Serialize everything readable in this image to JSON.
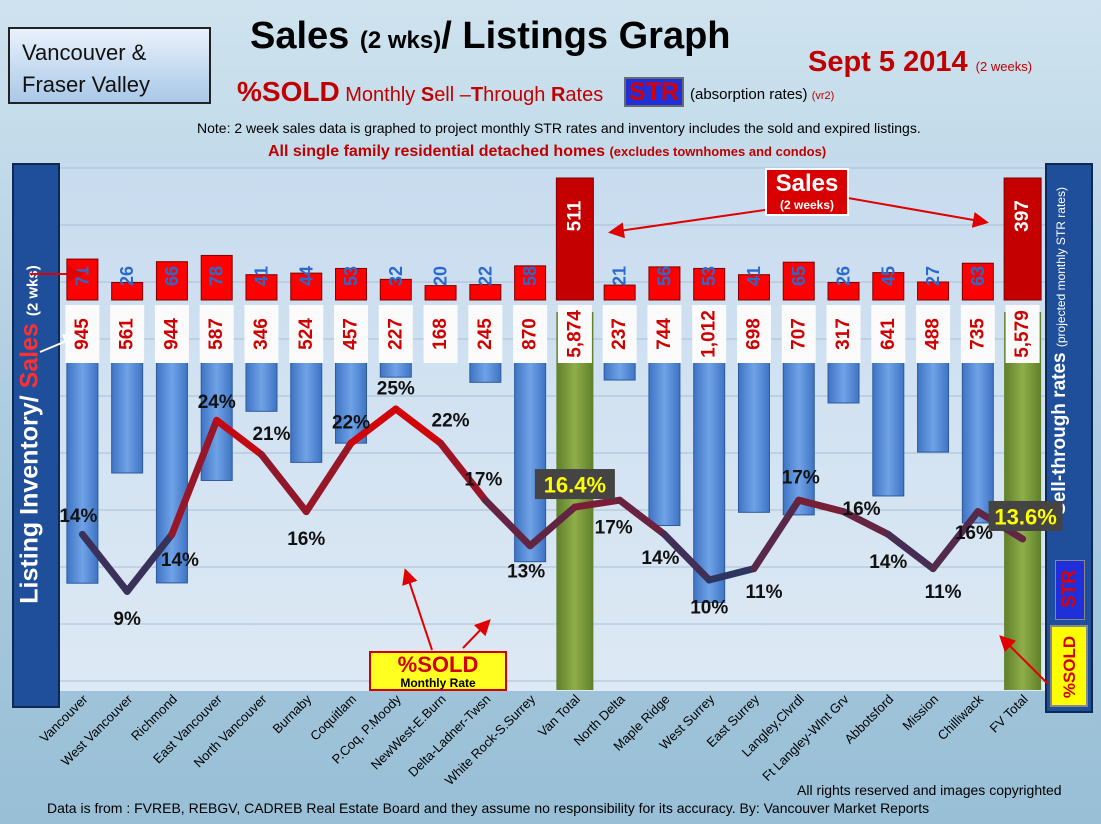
{
  "region": {
    "line1": "Vancouver &",
    "line2": "Fraser Valley"
  },
  "title": {
    "main": "Sales",
    "paren": "(2 wks)",
    "rest": "/ Listings Graph"
  },
  "date": {
    "main": "Sept 5 2014",
    "note": "(2 weeks)"
  },
  "subtitle": {
    "pct": "%SOLD",
    "parts": [
      "Monthly ",
      "S",
      "ell –",
      "T",
      "hrough ",
      "R",
      "ates"
    ],
    "str": "STR",
    "absorb": "(absorption rates)",
    "vr": "(vr2)"
  },
  "note": "Note: 2 week sales data is graphed to project monthly STR rates and inventory includes the sold and expired listings.",
  "scope": {
    "main": "All single family residential detached homes",
    "paren": "(excludes townhomes and condos)"
  },
  "left_axis": {
    "part1": "Listing Inventory/",
    "part2": "Sales",
    "part3": "(2 wks)"
  },
  "right_axis": {
    "main": "Sell-through rates",
    "note": "(projected monthly STR rates)"
  },
  "str_badge": "STR",
  "sold_badge": "%SOLD",
  "sold_box": {
    "title": "%SOLD",
    "sub": "Monthly Rate"
  },
  "sales_callout": {
    "title": "Sales",
    "sub": "(2 weeks)"
  },
  "rights": "All rights reserved and  images copyrighted",
  "source": "Data is from : FVREB, REBGV, CADREB Real Estate Board and they assume no responsibility for its accuracy. By: Vancouver Market Reports",
  "colors": {
    "sales": "#ff0000",
    "inventory": "#5b8fd8",
    "total": "#7a9a3a",
    "total_sales": "#c00000",
    "line_high": "#e00000",
    "line_low": "#1a3a6a"
  },
  "chart_data": {
    "type": "bar",
    "categories": [
      "Vancouver",
      "West Vancouver",
      "Richmond",
      "East Vancouver",
      "North Vancouver",
      "Burnaby",
      "Coquitlam",
      "P.Coq, P.Moody",
      "NewWest-E.Burn",
      "Delta-Ladner-Twsn",
      "White Rock-S.Surrey",
      "Van Total",
      "North Delta",
      "Maple Ridge",
      "West Surrey",
      "East Surrey",
      "Langley,Clvrdl",
      "Ft Langley-Wlnt Grv",
      "Abbotsford",
      "Mission",
      "Chilliwack",
      "FV Total"
    ],
    "sales": [
      71,
      26,
      66,
      78,
      41,
      44,
      53,
      32,
      20,
      22,
      58,
      511,
      21,
      56,
      53,
      41,
      65,
      26,
      45,
      27,
      63,
      397
    ],
    "sales_labels": [
      "71",
      "26",
      "66",
      "78",
      "41",
      "44",
      "53",
      "32",
      "20",
      "22",
      "58",
      "511",
      "21",
      "56",
      "53",
      "41",
      "65",
      "26",
      "45",
      "27",
      "63",
      "397"
    ],
    "inventory": [
      945,
      561,
      944,
      587,
      346,
      524,
      457,
      227,
      168,
      245,
      870,
      5874,
      237,
      744,
      1012,
      698,
      707,
      317,
      641,
      488,
      735,
      5579
    ],
    "inventory_labels": [
      "945",
      "561",
      "944",
      "587",
      "346",
      "524",
      "457",
      "227",
      "168",
      "245",
      "870",
      "5,874",
      "237",
      "744",
      "1,012",
      "698",
      "707",
      "317",
      "641",
      "488",
      "735",
      "5,579"
    ],
    "sold_pct": [
      14,
      9,
      14,
      24,
      21,
      16,
      22,
      25,
      22,
      17,
      13,
      16.4,
      17,
      14,
      10,
      11,
      17,
      16,
      14,
      11,
      16,
      13.6
    ],
    "sold_pct_labels": [
      "14%",
      "9%",
      "14%",
      "24%",
      "21%",
      "16%",
      "22%",
      "25%",
      "22%",
      "17%",
      "13%",
      "16.4%",
      "17%",
      "14%",
      "10%",
      "11%",
      "17%",
      "16%",
      "14%",
      "11%",
      "16%",
      "13.6%"
    ]
  }
}
